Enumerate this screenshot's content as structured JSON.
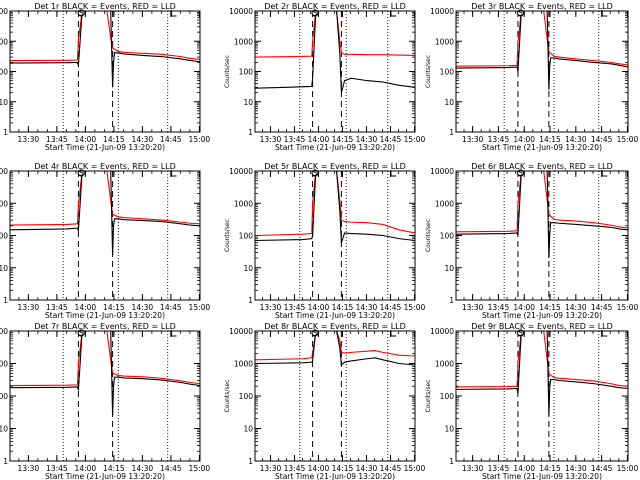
{
  "figure": {
    "xlabel": "Start Time (21-Jun-09 13:20:20)",
    "ylabel": "Counts/sec",
    "x_tick_labels": [
      "13:30",
      "13:45",
      "14:00",
      "14:15",
      "14:30",
      "14:45",
      "15:00"
    ],
    "y_tick_labels": [
      "1",
      "10",
      "100",
      "1000",
      "10000"
    ],
    "colors": {
      "events": "#000000",
      "lld": "#ff0000",
      "background": "#ffffff"
    },
    "markers": [
      {
        "label": "S"
      },
      {
        "label": "E"
      }
    ]
  },
  "chart_data": [
    {
      "type": "line",
      "title": "Det 1r BLACK = Events, RED = LLD",
      "xlabel": "Start Time (21-Jun-09 13:20:20)",
      "ylabel": "Counts/sec",
      "x_unit": "minutes after 13:20:20",
      "xlim": [
        0,
        100
      ],
      "ylim": [
        1,
        10000
      ],
      "yscale": "log",
      "dashed_lines_min": [
        36,
        54
      ],
      "dotted_lines_min": [
        28,
        57,
        83
      ],
      "series": [
        {
          "name": "Events",
          "color": "#000000",
          "x": [
            0,
            30,
            35.5,
            36,
            38,
            51,
            53,
            54,
            54.5,
            55,
            57,
            60,
            70,
            80,
            90,
            95,
            100
          ],
          "y": [
            190,
            195,
            200,
            160,
            10000,
            10000,
            10000,
            30,
            200,
            420,
            410,
            380,
            340,
            310,
            260,
            230,
            210
          ]
        },
        {
          "name": "LLD",
          "color": "#ff0000",
          "x": [
            0,
            30,
            35.5,
            36,
            38,
            51,
            53,
            54,
            57,
            60,
            70,
            80,
            90,
            95,
            100
          ],
          "y": [
            230,
            235,
            240,
            1100,
            10000,
            10000,
            1300,
            600,
            460,
            430,
            400,
            370,
            310,
            270,
            250
          ]
        }
      ]
    },
    {
      "type": "line",
      "title": "Det 2r BLACK = Events, RED = LLD",
      "xlabel": "Start Time (21-Jun-09 13:20:20)",
      "ylabel": "Counts/sec",
      "x_unit": "minutes after 13:20:20",
      "xlim": [
        0,
        100
      ],
      "ylim": [
        1,
        10000
      ],
      "yscale": "log",
      "dashed_lines_min": [
        36,
        54
      ],
      "dotted_lines_min": [
        28,
        57,
        83
      ],
      "series": [
        {
          "name": "Events",
          "color": "#000000",
          "x": [
            0,
            20,
            35.5,
            36,
            38,
            51,
            53,
            54,
            56,
            60,
            70,
            80,
            90,
            100
          ],
          "y": [
            28,
            30,
            32,
            60,
            10000,
            10000,
            400,
            20,
            50,
            60,
            50,
            45,
            35,
            30
          ]
        },
        {
          "name": "LLD",
          "color": "#ff0000",
          "x": [
            0,
            20,
            35.5,
            36,
            38,
            51,
            53,
            54,
            56,
            60,
            70,
            80,
            90,
            100
          ],
          "y": [
            300,
            310,
            320,
            1000,
            10000,
            10000,
            1000,
            420,
            370,
            370,
            360,
            360,
            350,
            340
          ]
        }
      ]
    },
    {
      "type": "line",
      "title": "Det 3r BLACK = Events, RED = LLD",
      "xlabel": "Start Time (21-Jun-09 13:20:20)",
      "ylabel": "Counts/sec",
      "x_unit": "minutes after 13:20:20",
      "xlim": [
        0,
        100
      ],
      "ylim": [
        1,
        10000
      ],
      "yscale": "log",
      "dashed_lines_min": [
        36,
        54
      ],
      "dotted_lines_min": [
        28,
        57,
        83
      ],
      "series": [
        {
          "name": "Events",
          "color": "#000000",
          "x": [
            0,
            30,
            35.5,
            36,
            38,
            51,
            53,
            54,
            54.5,
            55,
            57,
            60,
            70,
            80,
            90,
            95,
            100
          ],
          "y": [
            130,
            135,
            140,
            100,
            10000,
            10000,
            10000,
            25,
            150,
            280,
            280,
            260,
            230,
            200,
            180,
            160,
            140
          ]
        },
        {
          "name": "LLD",
          "color": "#ff0000",
          "x": [
            0,
            30,
            35.5,
            36,
            38,
            51,
            53,
            54,
            57,
            60,
            70,
            80,
            90,
            95,
            100
          ],
          "y": [
            150,
            155,
            160,
            900,
            10000,
            10000,
            1200,
            450,
            320,
            300,
            260,
            230,
            200,
            180,
            165
          ]
        }
      ]
    },
    {
      "type": "line",
      "title": "Det 4r BLACK = Events, RED = LLD",
      "xlabel": "Start Time (21-Jun-09 13:20:20)",
      "ylabel": "Counts/sec",
      "x_unit": "minutes after 13:20:20",
      "xlim": [
        0,
        100
      ],
      "ylim": [
        1,
        10000
      ],
      "yscale": "log",
      "dashed_lines_min": [
        36,
        54
      ],
      "dotted_lines_min": [
        28,
        57,
        83
      ],
      "series": [
        {
          "name": "Events",
          "color": "#000000",
          "x": [
            0,
            30,
            35.5,
            36,
            38,
            51,
            53,
            54,
            54.5,
            55,
            57,
            60,
            70,
            80,
            90,
            95,
            100
          ],
          "y": [
            150,
            160,
            170,
            140,
            10000,
            10000,
            10000,
            25,
            200,
            330,
            330,
            310,
            290,
            270,
            230,
            210,
            200
          ]
        },
        {
          "name": "LLD",
          "color": "#ff0000",
          "x": [
            0,
            30,
            35.5,
            36,
            38,
            51,
            53,
            54,
            57,
            60,
            70,
            80,
            90,
            95,
            100
          ],
          "y": [
            210,
            220,
            230,
            900,
            10000,
            10000,
            1200,
            450,
            380,
            360,
            330,
            300,
            260,
            240,
            230
          ]
        }
      ]
    },
    {
      "type": "line",
      "title": "Det 5r BLACK = Events, RED = LLD",
      "xlabel": "Start Time (21-Jun-09 13:20:20)",
      "ylabel": "Counts/sec",
      "x_unit": "minutes after 13:20:20",
      "xlim": [
        0,
        100
      ],
      "ylim": [
        1,
        10000
      ],
      "yscale": "log",
      "dashed_lines_min": [
        36,
        54
      ],
      "dotted_lines_min": [
        28,
        57,
        83
      ],
      "series": [
        {
          "name": "Events",
          "color": "#000000",
          "x": [
            0,
            30,
            35.5,
            36,
            38,
            51,
            53,
            54,
            56,
            60,
            70,
            80,
            90,
            100
          ],
          "y": [
            70,
            75,
            80,
            100,
            10000,
            10000,
            600,
            60,
            120,
            115,
            110,
            100,
            80,
            70
          ]
        },
        {
          "name": "LLD",
          "color": "#ff0000",
          "x": [
            0,
            30,
            35.5,
            36,
            38,
            51,
            53,
            54,
            56,
            60,
            70,
            80,
            90,
            100
          ],
          "y": [
            100,
            110,
            115,
            1000,
            10000,
            10000,
            1200,
            300,
            270,
            260,
            250,
            220,
            150,
            120
          ]
        }
      ]
    },
    {
      "type": "line",
      "title": "Det 6r BLACK = Events, RED = LLD",
      "xlabel": "Start Time (21-Jun-09 13:20:20)",
      "ylabel": "Counts/sec",
      "x_unit": "minutes after 13:20:20",
      "xlim": [
        0,
        100
      ],
      "ylim": [
        1,
        10000
      ],
      "yscale": "log",
      "dashed_lines_min": [
        36,
        54
      ],
      "dotted_lines_min": [
        28,
        57,
        83
      ],
      "series": [
        {
          "name": "Events",
          "color": "#000000",
          "x": [
            0,
            30,
            35.5,
            36,
            38,
            51,
            53,
            54,
            54.5,
            55,
            57,
            60,
            70,
            80,
            90,
            95,
            100
          ],
          "y": [
            110,
            115,
            120,
            100,
            10000,
            10000,
            10000,
            20,
            100,
            250,
            250,
            240,
            220,
            200,
            180,
            160,
            150
          ]
        },
        {
          "name": "LLD",
          "color": "#ff0000",
          "x": [
            0,
            30,
            35.5,
            36,
            38,
            51,
            53,
            54,
            57,
            60,
            70,
            80,
            90,
            95,
            100
          ],
          "y": [
            130,
            135,
            140,
            900,
            10000,
            10000,
            1300,
            450,
            320,
            300,
            280,
            250,
            210,
            185,
            170
          ]
        }
      ]
    },
    {
      "type": "line",
      "title": "Det 7r BLACK = Events, RED = LLD",
      "xlabel": "Start Time (21-Jun-09 13:20:20)",
      "ylabel": "Counts/sec",
      "x_unit": "minutes after 13:20:20",
      "xlim": [
        0,
        100
      ],
      "ylim": [
        1,
        10000
      ],
      "yscale": "log",
      "dashed_lines_min": [
        36,
        54
      ],
      "dotted_lines_min": [
        28,
        57,
        83
      ],
      "series": [
        {
          "name": "Events",
          "color": "#000000",
          "x": [
            0,
            30,
            35.5,
            36,
            38,
            51,
            53,
            54,
            54.5,
            55,
            57,
            60,
            70,
            80,
            90,
            95,
            100
          ],
          "y": [
            180,
            185,
            190,
            150,
            10000,
            10000,
            10000,
            25,
            200,
            380,
            380,
            360,
            340,
            310,
            260,
            230,
            210
          ]
        },
        {
          "name": "LLD",
          "color": "#ff0000",
          "x": [
            0,
            30,
            35.5,
            36,
            38,
            51,
            53,
            54,
            57,
            60,
            70,
            80,
            90,
            95,
            100
          ],
          "y": [
            210,
            215,
            220,
            1000,
            10000,
            10000,
            1300,
            500,
            430,
            410,
            390,
            350,
            290,
            260,
            240
          ]
        }
      ]
    },
    {
      "type": "line",
      "title": "Det 8r BLACK = Events, RED = LLD",
      "xlabel": "Start Time (21-Jun-09 13:20:20)",
      "ylabel": "Counts/sec",
      "x_unit": "minutes after 13:20:20",
      "xlim": [
        0,
        100
      ],
      "ylim": [
        1,
        10000
      ],
      "yscale": "log",
      "dashed_lines_min": [
        36,
        54
      ],
      "dotted_lines_min": [
        28,
        57,
        83
      ],
      "series": [
        {
          "name": "Events",
          "color": "#000000",
          "x": [
            0,
            30,
            35.5,
            36,
            38,
            51,
            53,
            54,
            56,
            60,
            70,
            75,
            80,
            90,
            100
          ],
          "y": [
            1000,
            1050,
            1100,
            1200,
            10000,
            10000,
            3000,
            900,
            1100,
            1200,
            1400,
            1500,
            1300,
            1000,
            900
          ]
        },
        {
          "name": "LLD",
          "color": "#ff0000",
          "x": [
            0,
            30,
            35.5,
            36,
            38,
            51,
            53,
            54,
            56,
            60,
            70,
            75,
            80,
            90,
            100
          ],
          "y": [
            1300,
            1400,
            1500,
            2000,
            10000,
            10000,
            5000,
            2200,
            2100,
            2200,
            2400,
            2500,
            2200,
            1800,
            1700
          ]
        }
      ]
    },
    {
      "type": "line",
      "title": "Det 9r BLACK = Events, RED = LLD",
      "xlabel": "Start Time (21-Jun-09 13:20:20)",
      "ylabel": "Counts/sec",
      "x_unit": "minutes after 13:20:20",
      "xlim": [
        0,
        100
      ],
      "ylim": [
        1,
        10000
      ],
      "yscale": "log",
      "dashed_lines_min": [
        36,
        54
      ],
      "dotted_lines_min": [
        28,
        57,
        83
      ],
      "series": [
        {
          "name": "Events",
          "color": "#000000",
          "x": [
            0,
            30,
            35.5,
            36,
            38,
            51,
            53,
            54,
            54.5,
            55,
            57,
            60,
            70,
            80,
            90,
            95,
            100
          ],
          "y": [
            160,
            165,
            170,
            120,
            10000,
            10000,
            10000,
            25,
            180,
            320,
            320,
            300,
            270,
            240,
            200,
            180,
            170
          ]
        },
        {
          "name": "LLD",
          "color": "#ff0000",
          "x": [
            0,
            30,
            35.5,
            36,
            38,
            51,
            53,
            54,
            57,
            60,
            70,
            80,
            90,
            95,
            100
          ],
          "y": [
            190,
            195,
            200,
            1000,
            10000,
            10000,
            1300,
            480,
            370,
            350,
            320,
            290,
            240,
            210,
            200
          ]
        }
      ]
    }
  ]
}
